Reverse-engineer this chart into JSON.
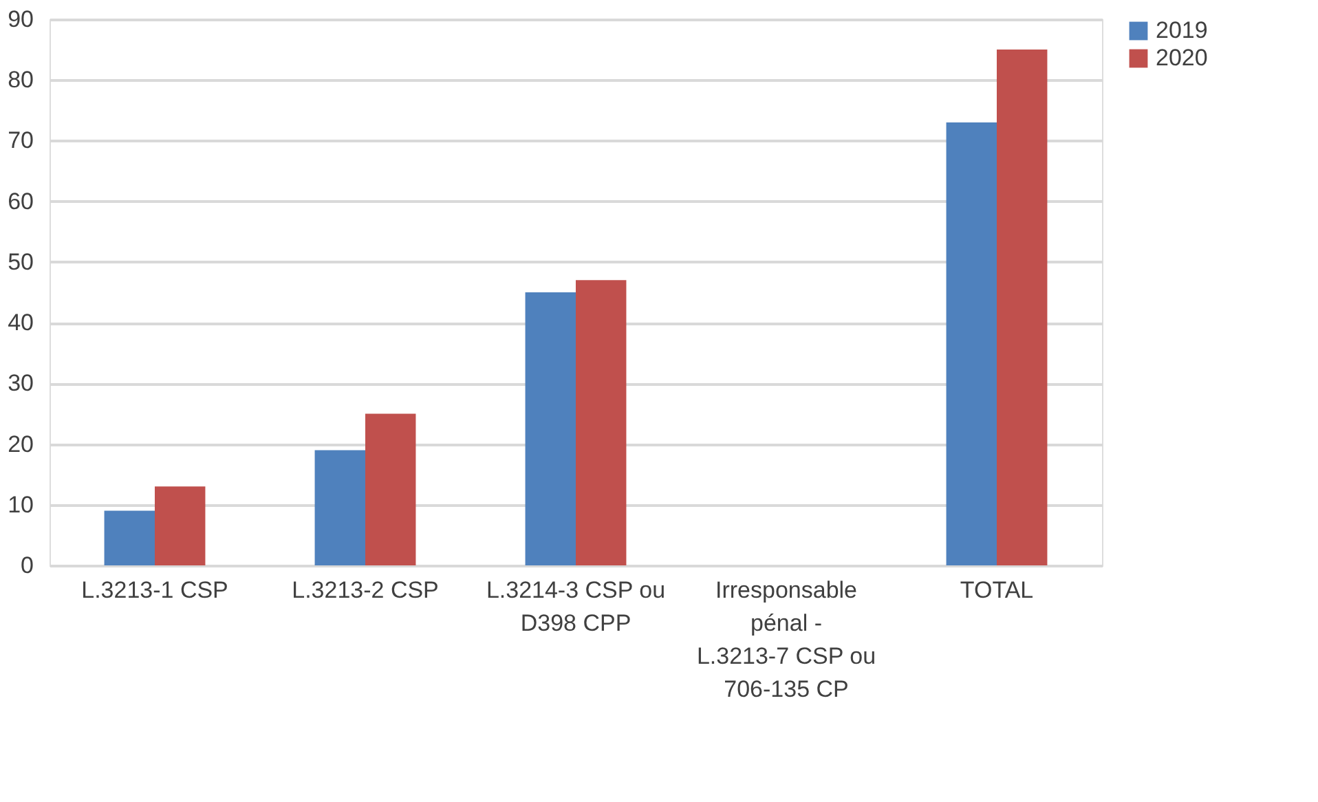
{
  "chart_data": {
    "type": "bar",
    "categories": [
      "L.3213-1 CSP",
      "L.3213-2 CSP",
      "L.3214-3 CSP ou D398 CPP",
      "Irresponsable pénal - L.3213-7 CSP ou 706-135 CP",
      "TOTAL"
    ],
    "series": [
      {
        "name": "2019",
        "color": "#4f81bd",
        "values": [
          9,
          19,
          45,
          0,
          73
        ]
      },
      {
        "name": "2020",
        "color": "#c0504d",
        "values": [
          13,
          25,
          47,
          0,
          85
        ]
      }
    ],
    "ylim": [
      0,
      90
    ],
    "yticks": [
      0,
      10,
      20,
      30,
      40,
      50,
      60,
      70,
      80,
      90
    ],
    "grid": "y",
    "legend": "right"
  }
}
